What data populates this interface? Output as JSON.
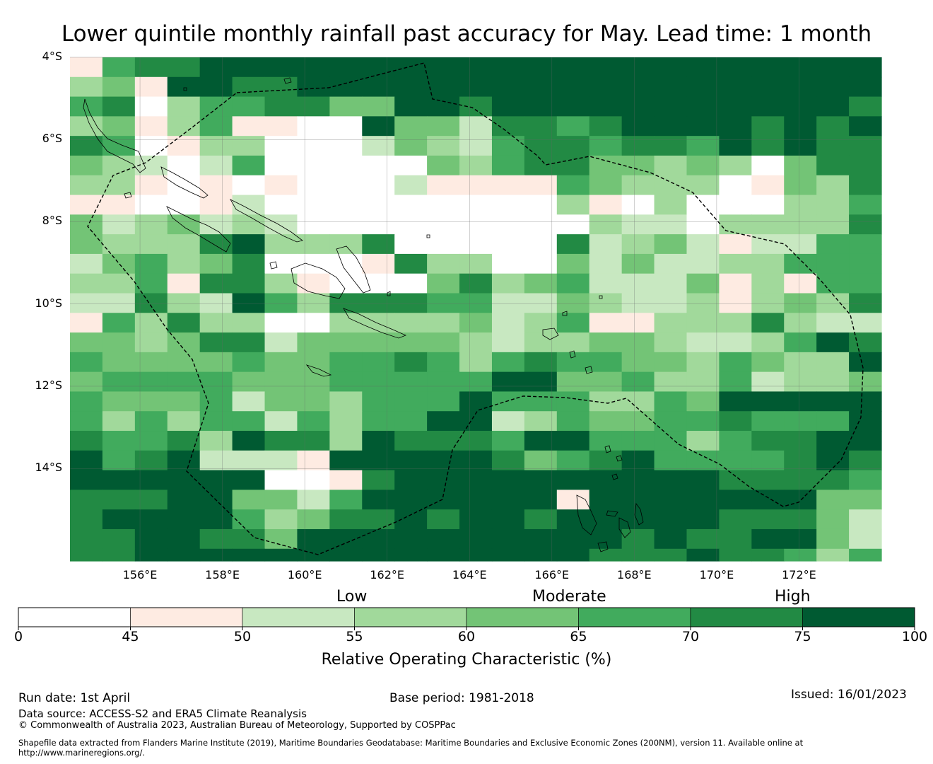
{
  "title": "Lower quintile monthly rainfall past accuracy for May. Lead time: 1 month",
  "map": {
    "lat_labels": [
      "4°S",
      "6°S",
      "8°S",
      "10°S",
      "12°S",
      "14°S"
    ],
    "lat_values": [
      -4,
      -6,
      -8,
      -10,
      -12,
      -14
    ],
    "lon_labels": [
      "156°E",
      "158°E",
      "160°E",
      "162°E",
      "164°E",
      "166°E",
      "168°E",
      "170°E",
      "172°E"
    ],
    "lon_values": [
      156,
      158,
      160,
      162,
      164,
      166,
      168,
      170,
      172
    ],
    "extent": {
      "lon_min": 154.3,
      "lon_max": 174.0,
      "lat_max": -4.0,
      "lat_min": -16.25
    },
    "grid_cell_deg": {
      "lon": 0.833,
      "lat": 0.555
    },
    "category_grid": [
      "1566777777777777777777777",
      "3417766777777777777777777",
      "5603556644776777777777776",
      "3413511007442665677776767",
      "6501330002432566566576766",
      "4320250000043566443430466",
      "3310101000211115433301436",
      "1100120000000003103000335",
      "4234232000000000322033336",
      "4333673336000006234212255",
      "2453460001633004242233555",
      "3351663100046345222413155",
      "2263275366655224322313436",
      "1536330033334235113336322",
      "4434662444443233443223576",
      "5444454455653565544354337",
      "4555544455555774453352334",
      "5444524435557555335477777",
      "5353552535577235445565557",
      "6556376637666577555356677",
      "7567222177777645675555676",
      "7777770016777777777766665",
      "6667744257777771777777744",
      "6777753466767767777766642",
      "6677664777777777767667742",
      "6677777777777777666766535"
    ],
    "color_scale": [
      "#ffffff",
      "#feebe2",
      "#c8e8c1",
      "#a1d99b",
      "#73c476",
      "#41ab5d",
      "#228a44",
      "#005a32"
    ]
  },
  "colorbar": {
    "category_labels": [
      "Low",
      "Moderate",
      "High"
    ],
    "ticks": [
      "0",
      "45",
      "50",
      "55",
      "60",
      "65",
      "70",
      "75",
      "100"
    ],
    "xlabel": "Relative Operating Characteristic (%)"
  },
  "footer": {
    "run_date": "Run date: 1st April",
    "base_period": "Base period: 1981-2018",
    "issued": "Issued: 16/01/2023",
    "data_source": "Data source: ACCESS-S2 and ERA5 Climate Reanalysis",
    "copyright": "© Commonwealth of Australia 2023, Australian Bureau of Meteorology, Supported by COSPPac",
    "shapefile_line1": "Shapefile data extracted from Flanders Marine Institute (2019), Maritime Boundaries Geodatabase: Maritime Boundaries and Exclusive Economic Zones (200NM), version 11. Available online at",
    "shapefile_line2": "http://www.marineregions.org/."
  }
}
